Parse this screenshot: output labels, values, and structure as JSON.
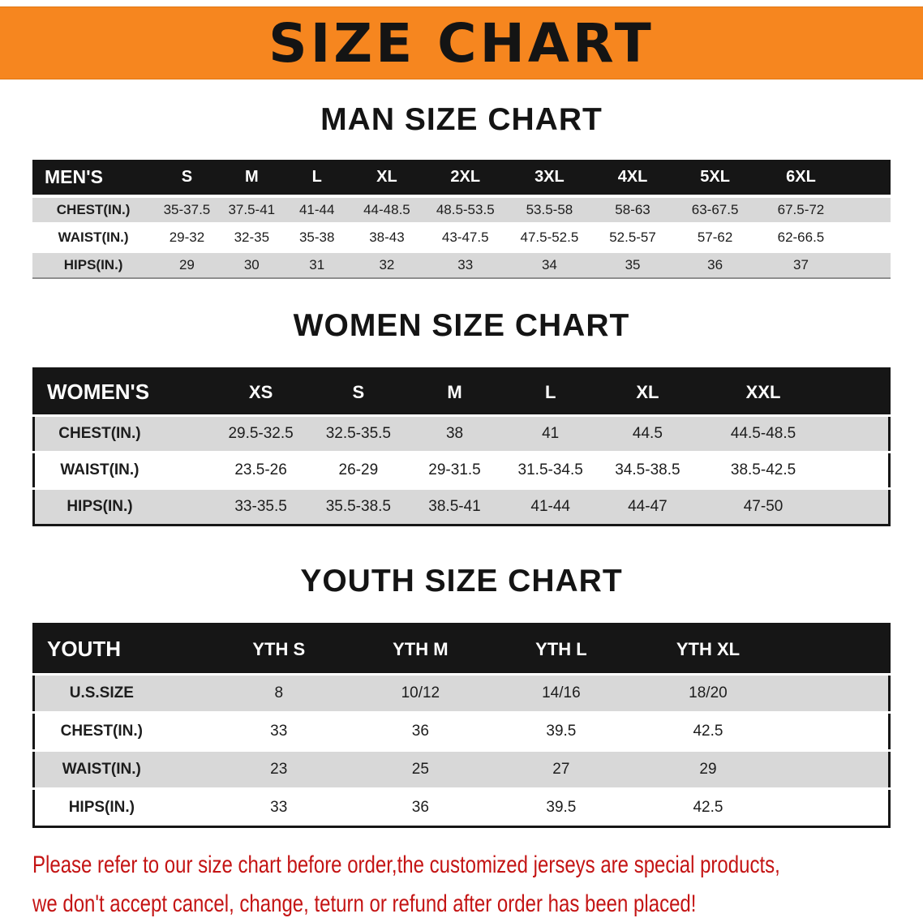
{
  "banner": {
    "title": "SIZE CHART",
    "bg_color": "#f6861f",
    "text_color": "#141414"
  },
  "sections": [
    {
      "heading": "MAN SIZE CHART",
      "table": {
        "header": [
          "MEN'S",
          "S",
          "M",
          "L",
          "XL",
          "2XL",
          "3XL",
          "4XL",
          "5XL",
          "6XL"
        ],
        "rows": [
          {
            "label": "CHEST(IN.)",
            "values": [
              "35-37.5",
              "37.5-41",
              "41-44",
              "44-48.5",
              "48.5-53.5",
              "53.5-58",
              "58-63",
              "63-67.5",
              "67.5-72"
            ]
          },
          {
            "label": "WAIST(IN.)",
            "values": [
              "29-32",
              "32-35",
              "35-38",
              "38-43",
              "43-47.5",
              "47.5-52.5",
              "52.5-57",
              "57-62",
              "62-66.5"
            ]
          },
          {
            "label": "HIPS(IN.)",
            "values": [
              "29",
              "30",
              "31",
              "32",
              "33",
              "34",
              "35",
              "36",
              "37"
            ]
          }
        ]
      }
    },
    {
      "heading": "WOMEN SIZE CHART",
      "table": {
        "header": [
          "WOMEN'S",
          "XS",
          "S",
          "M",
          "L",
          "XL",
          "XXL"
        ],
        "rows": [
          {
            "label": "CHEST(IN.)",
            "values": [
              "29.5-32.5",
              "32.5-35.5",
              "38",
              "41",
              "44.5",
              "44.5-48.5"
            ]
          },
          {
            "label": "WAIST(IN.)",
            "values": [
              "23.5-26",
              "26-29",
              "29-31.5",
              "31.5-34.5",
              "34.5-38.5",
              "38.5-42.5"
            ]
          },
          {
            "label": "HIPS(IN.)",
            "values": [
              "33-35.5",
              "35.5-38.5",
              "38.5-41",
              "41-44",
              "44-47",
              "47-50"
            ]
          }
        ]
      }
    },
    {
      "heading": "YOUTH SIZE CHART",
      "table": {
        "header": [
          "YOUTH",
          "YTH S",
          "YTH M",
          "YTH L",
          "YTH XL"
        ],
        "rows": [
          {
            "label": "U.S.SIZE",
            "values": [
              "8",
              "10/12",
              "14/16",
              "18/20"
            ]
          },
          {
            "label": "CHEST(IN.)",
            "values": [
              "33",
              "36",
              "39.5",
              "42.5"
            ]
          },
          {
            "label": "WAIST(IN.)",
            "values": [
              "23",
              "25",
              "27",
              "29"
            ]
          },
          {
            "label": "HIPS(IN.)",
            "values": [
              "33",
              "36",
              "39.5",
              "42.5"
            ]
          }
        ]
      }
    }
  ],
  "footer_note": {
    "line1": "Please refer to our size chart before order,the customized jerseys are special products,",
    "line2": "we don't accept cancel, change, teturn or refund after order has been placed!",
    "text_color": "#c41414"
  }
}
